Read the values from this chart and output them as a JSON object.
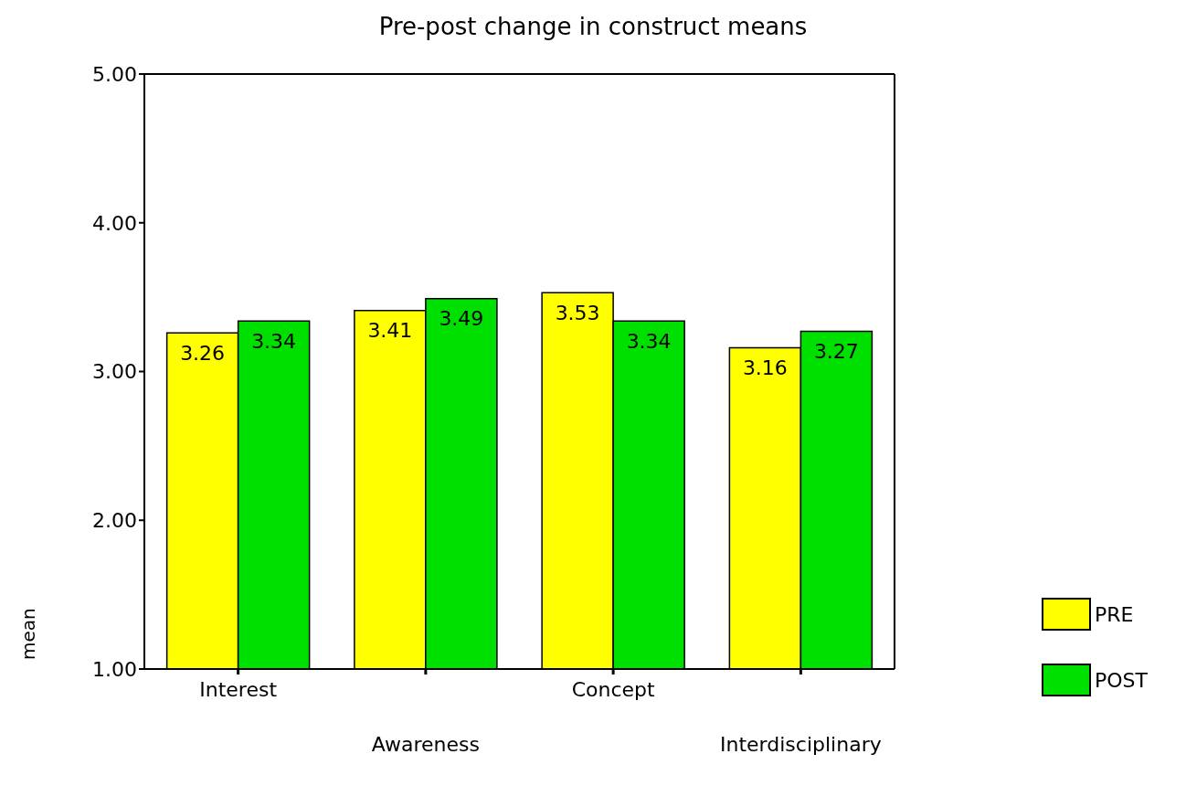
{
  "chart_data": {
    "type": "bar",
    "title": "Pre-post change in construct means",
    "ylabel": "mean",
    "categories": [
      "Interest",
      "Awareness",
      "Concept",
      "Interdisciplinary"
    ],
    "series": [
      {
        "name": "PRE",
        "color": "#ffff00",
        "values": [
          3.26,
          3.41,
          3.53,
          3.16
        ]
      },
      {
        "name": "POST",
        "color": "#00e000",
        "values": [
          3.34,
          3.49,
          3.34,
          3.27
        ]
      }
    ],
    "ylim": [
      1,
      5
    ],
    "yticks": [
      {
        "value": 1,
        "label": "1.00"
      },
      {
        "value": 2,
        "label": "2.00"
      },
      {
        "value": 3,
        "label": "3.00"
      },
      {
        "value": 4,
        "label": "4.00"
      },
      {
        "value": 5,
        "label": "5.00"
      }
    ],
    "data_labels": true,
    "legend": "bottom right",
    "grid": false
  }
}
